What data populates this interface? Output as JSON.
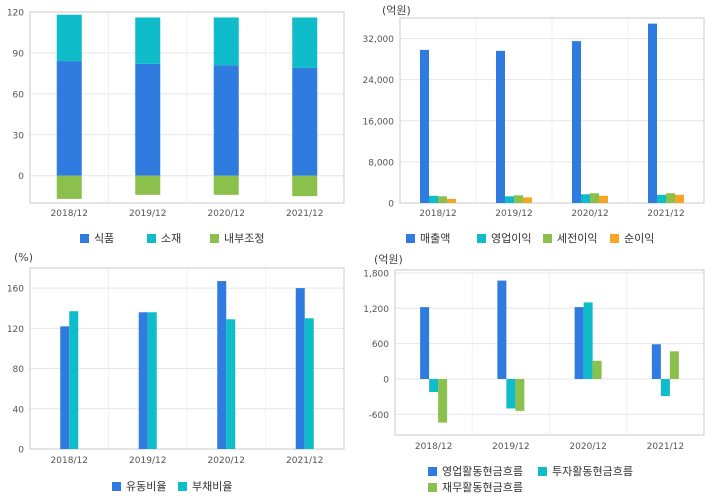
{
  "chart_data": [
    {
      "type": "bar",
      "stacked": true,
      "unit": "",
      "categories": [
        "2018/12",
        "2019/12",
        "2020/12",
        "2021/12"
      ],
      "ylim": [
        -20,
        120
      ],
      "yticks": [
        0,
        30,
        60,
        90,
        120
      ],
      "series": [
        {
          "name": "식품",
          "color": "#2f7be0",
          "values": [
            84,
            82,
            81,
            79
          ]
        },
        {
          "name": "소재",
          "color": "#0fbcc9",
          "values": [
            34,
            34,
            35,
            37
          ]
        },
        {
          "name": "내부조정",
          "color": "#8cc04d",
          "values": [
            -17,
            -14,
            -14,
            -15
          ]
        }
      ],
      "legend": "bottom"
    },
    {
      "type": "bar",
      "unit": "(억원)",
      "categories": [
        "2018/12",
        "2019/12",
        "2020/12",
        "2021/12"
      ],
      "ylim": [
        0,
        36000
      ],
      "yticks": [
        0,
        8000,
        16000,
        24000,
        32000
      ],
      "series": [
        {
          "name": "매출액",
          "color": "#2f7be0",
          "values": [
            29800,
            29600,
            31500,
            34900
          ]
        },
        {
          "name": "영업이익",
          "color": "#0fbcc9",
          "values": [
            1400,
            1300,
            1700,
            1600
          ]
        },
        {
          "name": "세전이익",
          "color": "#8cc04d",
          "values": [
            1300,
            1500,
            1900,
            1900
          ]
        },
        {
          "name": "순이익",
          "color": "#f5a623",
          "values": [
            800,
            1100,
            1400,
            1600
          ]
        }
      ],
      "legend": "bottom"
    },
    {
      "type": "bar",
      "unit": "(%)",
      "categories": [
        "2018/12",
        "2019/12",
        "2020/12",
        "2021/12"
      ],
      "ylim": [
        0,
        180
      ],
      "yticks": [
        0,
        40,
        80,
        120,
        160
      ],
      "series": [
        {
          "name": "유동비율",
          "color": "#2f7be0",
          "values": [
            122,
            136,
            167,
            160
          ]
        },
        {
          "name": "부채비율",
          "color": "#0fbcc9",
          "values": [
            137,
            136,
            129,
            130
          ]
        }
      ],
      "legend": "bottom"
    },
    {
      "type": "bar",
      "unit": "(억원)",
      "categories": [
        "2018/12",
        "2019/12",
        "2020/12",
        "2021/12"
      ],
      "ylim": [
        -950,
        1850
      ],
      "yticks": [
        -600,
        0,
        600,
        1200,
        1800
      ],
      "ytick_labels": [
        "-600",
        "0",
        "600",
        "1,200",
        "1,800"
      ],
      "series": [
        {
          "name": "영업활동현금흐름",
          "color": "#2f7be0",
          "values": [
            1220,
            1670,
            1220,
            590
          ]
        },
        {
          "name": "투자활동현금흐름",
          "color": "#0fbcc9",
          "values": [
            -220,
            -500,
            1300,
            -290
          ]
        },
        {
          "name": "재무활동현금흐름",
          "color": "#8cc04d",
          "values": [
            -740,
            -540,
            310,
            470
          ]
        }
      ],
      "legend": "bottom"
    }
  ]
}
